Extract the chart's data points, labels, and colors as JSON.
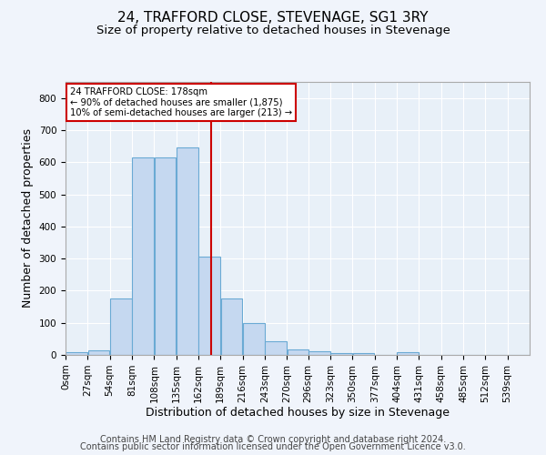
{
  "title": "24, TRAFFORD CLOSE, STEVENAGE, SG1 3RY",
  "subtitle": "Size of property relative to detached houses in Stevenage",
  "xlabel": "Distribution of detached houses by size in Stevenage",
  "ylabel": "Number of detached properties",
  "footnote1": "Contains HM Land Registry data © Crown copyright and database right 2024.",
  "footnote2": "Contains public sector information licensed under the Open Government Licence v3.0.",
  "bin_labels": [
    "0sqm",
    "27sqm",
    "54sqm",
    "81sqm",
    "108sqm",
    "135sqm",
    "162sqm",
    "189sqm",
    "216sqm",
    "243sqm",
    "270sqm",
    "296sqm",
    "323sqm",
    "350sqm",
    "377sqm",
    "404sqm",
    "431sqm",
    "458sqm",
    "485sqm",
    "512sqm",
    "539sqm"
  ],
  "bin_edges": [
    0,
    27,
    54,
    81,
    108,
    135,
    162,
    189,
    216,
    243,
    270,
    296,
    323,
    350,
    377,
    404,
    431,
    458,
    485,
    512,
    539,
    566
  ],
  "bar_heights": [
    8,
    15,
    175,
    615,
    615,
    645,
    305,
    175,
    100,
    43,
    18,
    10,
    5,
    5,
    0,
    8,
    0,
    0,
    0,
    0,
    0
  ],
  "bar_color": "#c5d8f0",
  "bar_edgecolor": "#6aaad4",
  "vline_x": 178,
  "vline_color": "#cc0000",
  "annotation_text": "24 TRAFFORD CLOSE: 178sqm\n← 90% of detached houses are smaller (1,875)\n10% of semi-detached houses are larger (213) →",
  "annotation_box_edgecolor": "#cc0000",
  "annotation_box_facecolor": "#ffffff",
  "ylim": [
    0,
    850
  ],
  "xlim": [
    0,
    566
  ],
  "bg_color": "#f0f4fb",
  "plot_bg_color": "#e8f0f8",
  "grid_color": "#ffffff",
  "title_fontsize": 11,
  "subtitle_fontsize": 9.5,
  "axis_label_fontsize": 9,
  "tick_fontsize": 7.5,
  "footnote_fontsize": 7
}
